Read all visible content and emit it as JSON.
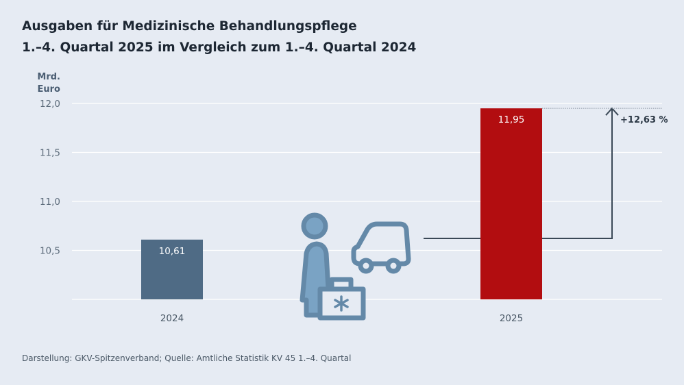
{
  "chart_data": {
    "type": "bar",
    "title": "Ausgaben für Medizinische Behandlungspflege",
    "subtitle": "1.–4. Quartal 2025 im Vergleich zum 1.–4. Quartal 2024",
    "ylabel": [
      "Mrd.",
      "Euro"
    ],
    "ylim": [
      10.0,
      12.0
    ],
    "yticks": [
      "12,0",
      "11,5",
      "11,0",
      "10,5"
    ],
    "ytick_values": [
      12.0,
      11.5,
      11.0,
      10.5
    ],
    "grid": true,
    "categories": [
      "2024",
      "2025"
    ],
    "values": [
      10.61,
      11.95
    ],
    "data_labels": [
      "10,61",
      "11,95"
    ],
    "colors": [
      "#4f6b85",
      "#b20d10"
    ],
    "annotation": "+12,63 %",
    "source": "Darstellung: GKV-Spitzenverband; Quelle: Amtliche Statistik KV 45 1.–4. Quartal",
    "icon": "nurse-with-medical-case-and-car-icon"
  }
}
